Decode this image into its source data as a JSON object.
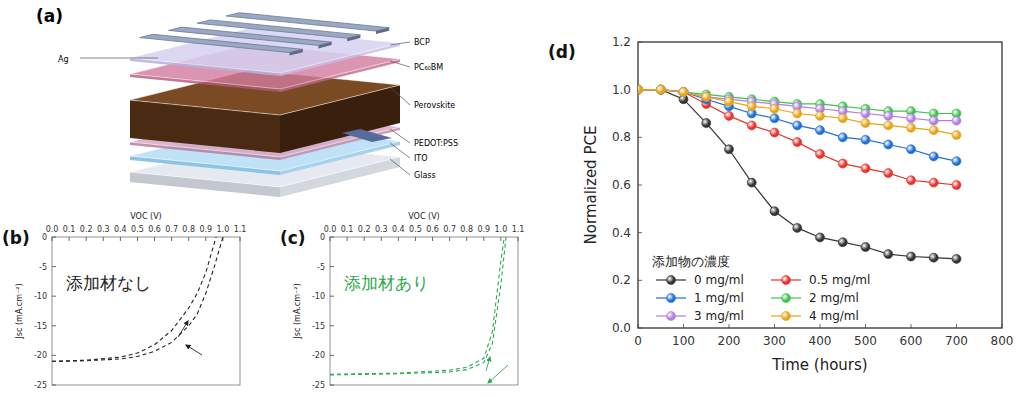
{
  "diagram": {
    "label": "(a)",
    "layers": [
      "Ag",
      "BCP",
      "PC₆₀BM",
      "Perovskite",
      "PEDOT:PSS",
      "ITO",
      "Glass"
    ]
  },
  "chart_data": [
    {
      "type": "line",
      "title": "(b)",
      "x_label": "VOC (V)",
      "y_label": "Jsc (mA.cm⁻²)",
      "annotations": [
        "添加材なし"
      ],
      "color": "#222222",
      "line_style": "dashed",
      "xlim": [
        0,
        1.1
      ],
      "xticks": [
        {
          "value": 0,
          "label": "0.0"
        },
        {
          "value": 0.1,
          "label": "0.1"
        },
        {
          "value": 0.2,
          "label": "0.2"
        },
        {
          "value": 0.3,
          "label": "0.3"
        },
        {
          "value": 0.4,
          "label": "0.4"
        },
        {
          "value": 0.5,
          "label": "0.5"
        },
        {
          "value": 0.6,
          "label": "0.6"
        },
        {
          "value": 0.7,
          "label": "0.7"
        },
        {
          "value": 0.8,
          "label": "0.8"
        },
        {
          "value": 0.9,
          "label": "0.9"
        },
        {
          "value": 1,
          "label": "1.0"
        },
        {
          "value": 1.1,
          "label": "1.1"
        }
      ],
      "ylim": [
        -25,
        0
      ],
      "yticks": [
        0,
        -5,
        -10,
        -15,
        -20,
        -25
      ],
      "series": [
        {
          "x": [
            0,
            0.2,
            0.4,
            0.5,
            0.6,
            0.7,
            0.8,
            0.85,
            0.9,
            0.95,
            1.0
          ],
          "values": [
            -21,
            -20.9,
            -20.6,
            -20.2,
            -19.3,
            -17.8,
            -15,
            -13,
            -9.5,
            -5,
            0
          ]
        },
        {
          "x": [
            0,
            0.2,
            0.4,
            0.5,
            0.6,
            0.7,
            0.8,
            0.85,
            0.9,
            0.96
          ],
          "values": [
            -21,
            -20.8,
            -20.3,
            -19.6,
            -18.2,
            -15.8,
            -12,
            -9.5,
            -6,
            0
          ]
        }
      ]
    },
    {
      "type": "line",
      "title": "(c)",
      "x_label": "VOC (V)",
      "y_label": "Jsc (mA.cm⁻²)",
      "annotations": [
        "添加材あり"
      ],
      "color": "#2ea84a",
      "line_style": "dashed",
      "xlim": [
        0,
        1.1
      ],
      "xticks": [
        {
          "value": 0,
          "label": "0.0"
        },
        {
          "value": 0.1,
          "label": "0.1"
        },
        {
          "value": 0.2,
          "label": "0.2"
        },
        {
          "value": 0.3,
          "label": "0.3"
        },
        {
          "value": 0.4,
          "label": "0.4"
        },
        {
          "value": 0.5,
          "label": "0.5"
        },
        {
          "value": 0.6,
          "label": "0.6"
        },
        {
          "value": 0.7,
          "label": "0.7"
        },
        {
          "value": 0.8,
          "label": "0.8"
        },
        {
          "value": 0.9,
          "label": "0.9"
        },
        {
          "value": 1,
          "label": "1.0"
        },
        {
          "value": 1.1,
          "label": "1.1"
        }
      ],
      "ylim": [
        -25,
        0
      ],
      "yticks": [
        0,
        -5,
        -10,
        -15,
        -20,
        -25
      ],
      "series": [
        {
          "x": [
            0,
            0.4,
            0.7,
            0.8,
            0.9,
            0.95,
            1.0,
            1.03
          ],
          "values": [
            -23.3,
            -23.1,
            -22.8,
            -22.4,
            -21.2,
            -18,
            -8,
            0
          ]
        },
        {
          "x": [
            0,
            0.4,
            0.7,
            0.8,
            0.9,
            0.95,
            1.0,
            1.02
          ],
          "values": [
            -23.2,
            -23.0,
            -22.5,
            -22,
            -20.5,
            -16,
            -4,
            0
          ]
        }
      ]
    },
    {
      "type": "line",
      "title": "(d)",
      "x_label": "Time (hours)",
      "y_label": "Normalized PCE",
      "legend_title": "添加物の濃度",
      "legend": "lower left",
      "marker": "circle",
      "x": [
        0,
        50,
        100,
        150,
        200,
        250,
        300,
        350,
        400,
        450,
        500,
        550,
        600,
        650,
        700
      ],
      "xlim": [
        0,
        800
      ],
      "xticks": [
        0,
        100,
        200,
        300,
        400,
        500,
        600,
        700,
        800
      ],
      "ylim": [
        0,
        1.2
      ],
      "yticks": [
        {
          "value": 0,
          "label": "0.0"
        },
        {
          "value": 0.2,
          "label": "0.2"
        },
        {
          "value": 0.4,
          "label": "0.4"
        },
        {
          "value": 0.6,
          "label": "0.6"
        },
        {
          "value": 0.8,
          "label": "0.8"
        },
        {
          "value": 1,
          "label": "1.0"
        },
        {
          "value": 1.2,
          "label": "1.2"
        }
      ],
      "series": [
        {
          "name": "0 mg/ml",
          "color": "#333333",
          "values": [
            1.0,
            1.0,
            0.96,
            0.86,
            0.75,
            0.61,
            0.49,
            0.42,
            0.38,
            0.36,
            0.34,
            0.31,
            0.3,
            0.295,
            0.29
          ]
        },
        {
          "name": "0.5 mg/ml",
          "color": "#e8332c",
          "values": [
            1.0,
            1.0,
            0.99,
            0.94,
            0.89,
            0.85,
            0.82,
            0.78,
            0.73,
            0.69,
            0.67,
            0.65,
            0.62,
            0.61,
            0.6
          ]
        },
        {
          "name": "1 mg/ml",
          "color": "#1f6fd6",
          "values": [
            1.0,
            1.0,
            0.99,
            0.96,
            0.93,
            0.9,
            0.88,
            0.85,
            0.83,
            0.8,
            0.79,
            0.77,
            0.75,
            0.72,
            0.7
          ]
        },
        {
          "name": "2 mg/ml",
          "color": "#3cc44a",
          "values": [
            1.0,
            1.0,
            0.99,
            0.98,
            0.97,
            0.96,
            0.95,
            0.94,
            0.94,
            0.93,
            0.92,
            0.91,
            0.91,
            0.9,
            0.9
          ]
        },
        {
          "name": "3 mg/ml",
          "color": "#b07ee0",
          "values": [
            1.0,
            1.0,
            0.99,
            0.97,
            0.96,
            0.95,
            0.94,
            0.93,
            0.92,
            0.91,
            0.9,
            0.89,
            0.88,
            0.87,
            0.87
          ]
        },
        {
          "name": "4 mg/ml",
          "color": "#e8a317",
          "values": [
            1.0,
            1.0,
            0.99,
            0.97,
            0.95,
            0.93,
            0.92,
            0.9,
            0.89,
            0.88,
            0.86,
            0.85,
            0.84,
            0.83,
            0.81
          ]
        }
      ]
    }
  ]
}
